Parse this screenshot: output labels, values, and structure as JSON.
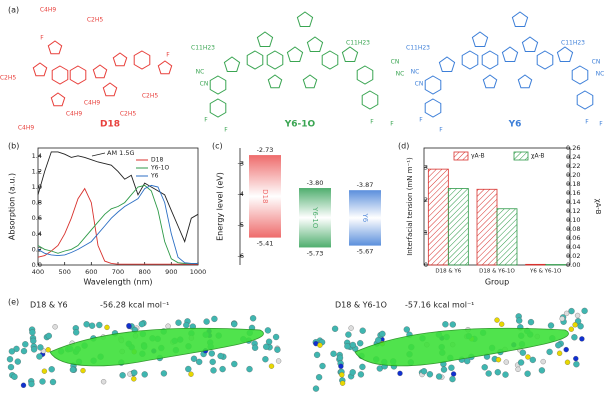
{
  "panel_a": {
    "label": "(a)",
    "structures": [
      {
        "name": "D18",
        "color": "#e8403c",
        "labels": [
          "C4H9",
          "C2H5",
          "F",
          "C2H5",
          "C4H9",
          "C2H5",
          "C4H9",
          "F",
          "C2H5",
          "C4H9"
        ]
      },
      {
        "name": "Y6-1O",
        "color": "#3aa552",
        "labels": [
          "C11H23",
          "C11H23",
          "NC",
          "CN",
          "CN",
          "NC",
          "F",
          "F",
          "F",
          "F"
        ]
      },
      {
        "name": "Y6",
        "color": "#3d7fd8",
        "labels": [
          "C11H23",
          "C11H23",
          "NC",
          "CN",
          "CN",
          "NC",
          "F",
          "F",
          "F",
          "F"
        ]
      }
    ]
  },
  "panel_e": {
    "label": "(e)",
    "complexes": [
      {
        "name": "D18 & Y6",
        "energy": "-56.28 kcal mol⁻¹"
      },
      {
        "name": "D18 & Y6-1O",
        "energy": "-57.16 kcal mol⁻¹"
      }
    ]
  },
  "chart_data": [
    {
      "type": "line",
      "panel_label": "(b)",
      "x_label": "Wavelength (nm)",
      "y_label": "Absorption (a.u.)",
      "annotation": "AM 1.5G",
      "legend": "upper right",
      "x": [
        400,
        425,
        450,
        475,
        500,
        525,
        550,
        575,
        600,
        625,
        650,
        675,
        700,
        725,
        750,
        775,
        800,
        825,
        850,
        875,
        900,
        925,
        950,
        975,
        1000
      ],
      "series": [
        {
          "name": "AM 1.5G",
          "color": "#222222",
          "values": [
            0.9,
            1.2,
            1.45,
            1.45,
            1.42,
            1.38,
            1.4,
            1.38,
            1.35,
            1.32,
            1.3,
            1.28,
            1.2,
            1.1,
            1.15,
            0.9,
            1.05,
            1.0,
            0.95,
            0.9,
            0.7,
            0.5,
            0.3,
            0.6,
            0.65
          ]
        },
        {
          "name": "D18",
          "color": "#d8322e",
          "values": [
            0.1,
            0.12,
            0.18,
            0.25,
            0.4,
            0.6,
            0.85,
            0.98,
            0.8,
            0.25,
            0.05,
            0.02,
            0.01,
            0.01,
            0.01,
            0.01,
            0.01,
            0.01,
            0.01,
            0.01,
            0.01,
            0.01,
            0.01,
            0.01,
            0.01
          ]
        },
        {
          "name": "Y6-1O",
          "color": "#2e9a48",
          "values": [
            0.25,
            0.2,
            0.18,
            0.15,
            0.18,
            0.2,
            0.25,
            0.35,
            0.45,
            0.55,
            0.65,
            0.72,
            0.75,
            0.8,
            0.9,
            1.0,
            1.02,
            0.95,
            0.7,
            0.3,
            0.08,
            0.03,
            0.02,
            0.02,
            0.02
          ]
        },
        {
          "name": "Y6",
          "color": "#2c6fc4",
          "values": [
            0.2,
            0.15,
            0.13,
            0.12,
            0.13,
            0.16,
            0.2,
            0.25,
            0.3,
            0.4,
            0.5,
            0.6,
            0.68,
            0.75,
            0.8,
            0.85,
            0.98,
            1.02,
            1.0,
            0.8,
            0.4,
            0.1,
            0.03,
            0.02,
            0.02
          ]
        }
      ],
      "xlim": [
        400,
        1000
      ],
      "xticks": [
        400,
        500,
        600,
        700,
        800,
        900,
        1000
      ],
      "ylim": [
        0,
        1.5
      ],
      "yticks": [
        {
          "value": 0,
          "label": "0.0"
        },
        {
          "value": 0.2,
          "label": "0.2"
        },
        {
          "value": 0.4,
          "label": "0.4"
        },
        {
          "value": 0.6,
          "label": "0.6"
        },
        {
          "value": 0.8,
          "label": "0.8"
        },
        {
          "value": 1,
          "label": "1.0"
        },
        {
          "value": 1.2,
          "label": "1.2"
        },
        {
          "value": 1.4,
          "label": "1.4"
        }
      ]
    },
    {
      "type": "floating_bar",
      "panel_label": "(c)",
      "y_label": "Energy level (eV)",
      "categories": [
        "D18",
        "Y6-1O",
        "Y6"
      ],
      "colors": [
        "#ee6b6b",
        "#4fae6e",
        "#5b8fdc"
      ],
      "lumo": [
        -2.73,
        -3.8,
        -3.87
      ],
      "lumo_labels": [
        "-2.73",
        "-3.80",
        "-3.87"
      ],
      "homo": [
        -5.41,
        -5.73,
        -5.67
      ],
      "homo_labels": [
        "-5.41",
        "-5.73",
        "-5.67"
      ],
      "ylim": [
        -2.5,
        -6.3
      ],
      "yticks": [
        -3,
        -4,
        -5,
        -6
      ]
    },
    {
      "type": "bar",
      "panel_label": "(d)",
      "x_label": "Group",
      "y_label": "Interfacial tension (mN m⁻¹)",
      "y2_label": "χA-B",
      "legend": "upper center",
      "categories": [
        "D18 & Y6",
        "D18 & Y6-1O",
        "Y6 & Y6-1O"
      ],
      "series": [
        {
          "name": "γA-B",
          "color": "#d8322e",
          "values": [
            2.95,
            2.33,
            0.02
          ]
        },
        {
          "name": "χA-B",
          "color": "#2e9a48",
          "axis": "y2",
          "values": [
            0.17,
            0.125,
            0.001
          ]
        }
      ],
      "ylim": [
        0,
        3.6
      ],
      "yticks": [
        0,
        1,
        2,
        3
      ],
      "y2lim": [
        0,
        0.26
      ],
      "y2ticks": [
        {
          "value": 0,
          "label": "0.00"
        },
        {
          "value": 0.02,
          "label": "0.02"
        },
        {
          "value": 0.04,
          "label": "0.04"
        },
        {
          "value": 0.06,
          "label": "0.06"
        },
        {
          "value": 0.08,
          "label": "0.08"
        },
        {
          "value": 0.1,
          "label": "0.10"
        },
        {
          "value": 0.12,
          "label": "0.12"
        },
        {
          "value": 0.14,
          "label": "0.14"
        },
        {
          "value": 0.16,
          "label": "0.16"
        },
        {
          "value": 0.18,
          "label": "0.18"
        },
        {
          "value": 0.2,
          "label": "0.20"
        },
        {
          "value": 0.22,
          "label": "0.22"
        },
        {
          "value": 0.24,
          "label": "0.24"
        },
        {
          "value": 0.26,
          "label": "0.26"
        }
      ]
    }
  ]
}
